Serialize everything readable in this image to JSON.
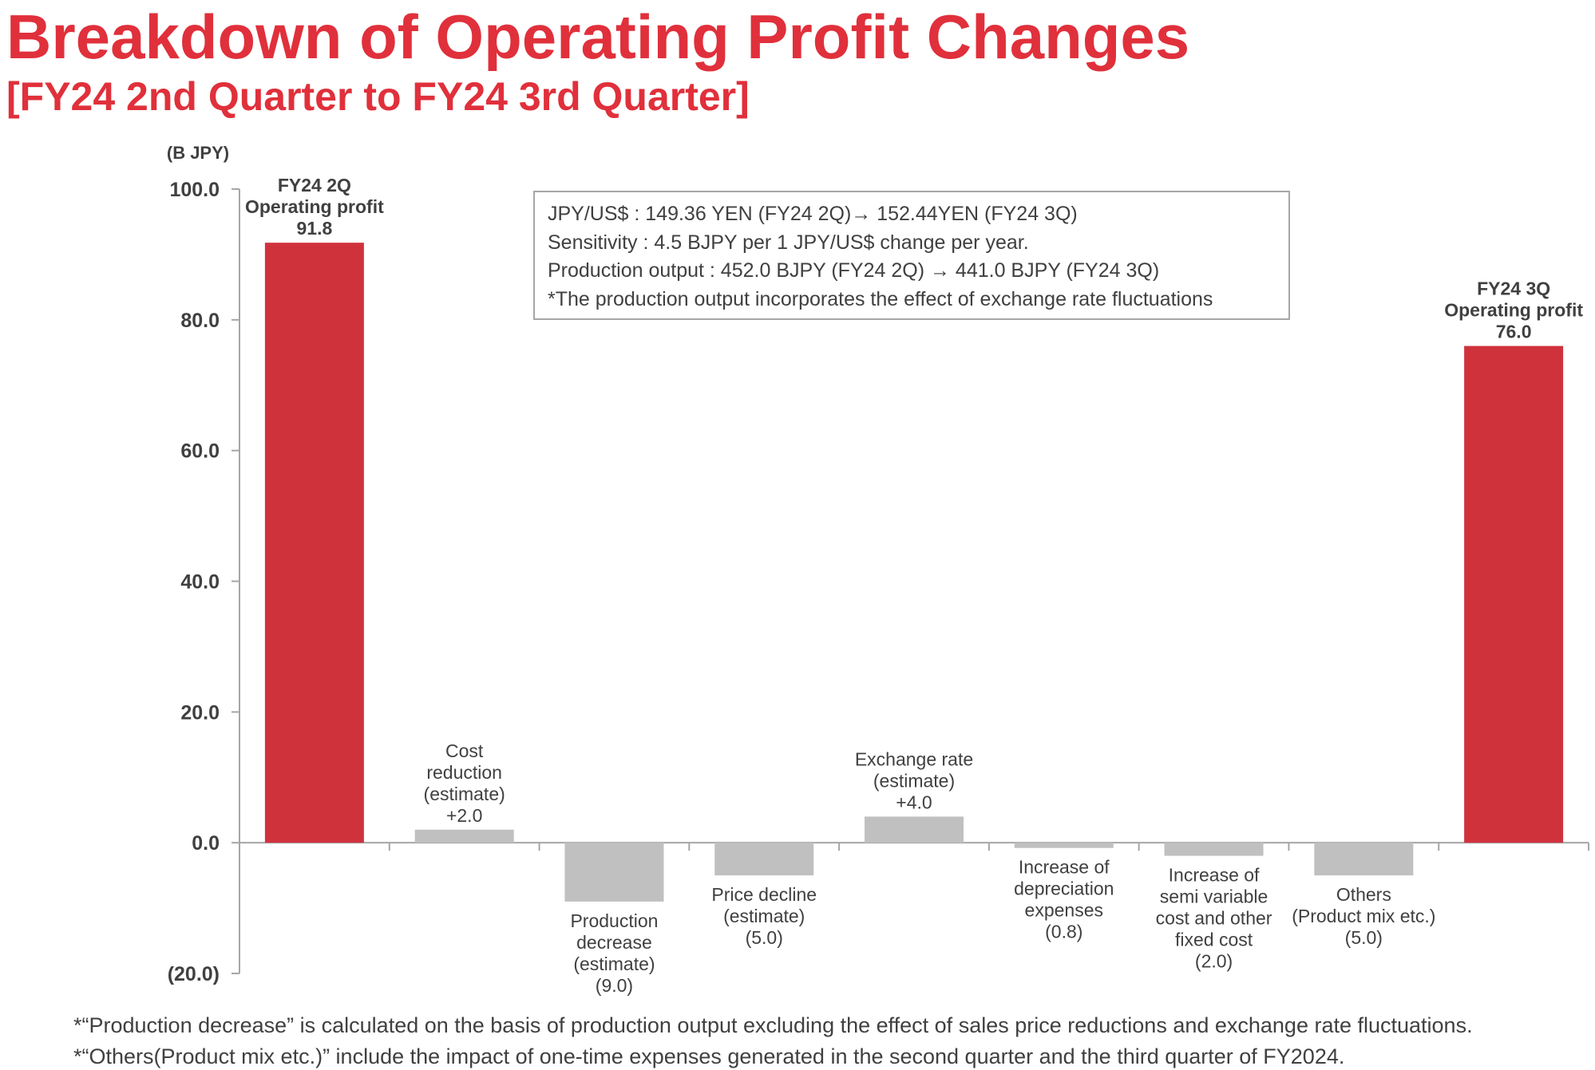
{
  "title": "Breakdown of Operating Profit Changes",
  "subtitle": "[FY24 2nd Quarter to FY24 3rd Quarter]",
  "note_box": {
    "lines": [
      "JPY/US$ : 149.36 YEN (FY24 2Q)→ 152.44YEN (FY24 3Q)",
      "Sensitivity : 4.5 BJPY per 1 JPY/US$ change per year.",
      "Production output : 452.0 BJPY (FY24 2Q) → 441.0 BJPY (FY24 3Q)",
      "*The production output incorporates the effect of exchange rate fluctuations"
    ]
  },
  "footnotes": [
    "*“Production decrease” is calculated on the basis of production output excluding the effect of sales price reductions and exchange rate  fluctuations.",
    "*“Others(Product mix etc.)” include the impact of one-time expenses generated in the second quarter and the third quarter of FY2024."
  ],
  "chart_data": {
    "type": "bar",
    "subtype": "waterfall",
    "unit_label": "(B JPY)",
    "ylim": [
      -20,
      100
    ],
    "yticks": [
      100,
      80,
      60,
      40,
      20,
      0,
      -20
    ],
    "ytick_labels": [
      "100.0",
      "80.0",
      "60.0",
      "40.0",
      "20.0",
      "0.0",
      "(20.0)"
    ],
    "grid": false,
    "colors": {
      "total": "#d0323c",
      "change": "#c0c0c0"
    },
    "bars": [
      {
        "label_lines": [
          "FY24 2Q",
          "Operating profit",
          "91.8"
        ],
        "value": 91.8,
        "kind": "total"
      },
      {
        "label_lines": [
          "Cost",
          "reduction",
          "(estimate)",
          "+2.0"
        ],
        "value": 2.0,
        "kind": "change"
      },
      {
        "label_lines": [
          "Production",
          "decrease",
          "(estimate)",
          "(9.0)"
        ],
        "value": -9.0,
        "kind": "change"
      },
      {
        "label_lines": [
          "Price decline",
          "(estimate)",
          "(5.0)"
        ],
        "value": -5.0,
        "kind": "change"
      },
      {
        "label_lines": [
          "Exchange rate",
          "(estimate)",
          "+4.0"
        ],
        "value": 4.0,
        "kind": "change"
      },
      {
        "label_lines": [
          "Increase of",
          "depreciation",
          "expenses",
          "(0.8)"
        ],
        "value": -0.8,
        "kind": "change"
      },
      {
        "label_lines": [
          "Increase of",
          "semi variable",
          "cost and other",
          "fixed cost",
          "(2.0)"
        ],
        "value": -2.0,
        "kind": "change"
      },
      {
        "label_lines": [
          "Others",
          "(Product mix etc.)",
          "(5.0)"
        ],
        "value": -5.0,
        "kind": "change"
      },
      {
        "label_lines": [
          "FY24 3Q",
          "Operating profit",
          "76.0"
        ],
        "value": 76.0,
        "kind": "total"
      }
    ]
  }
}
